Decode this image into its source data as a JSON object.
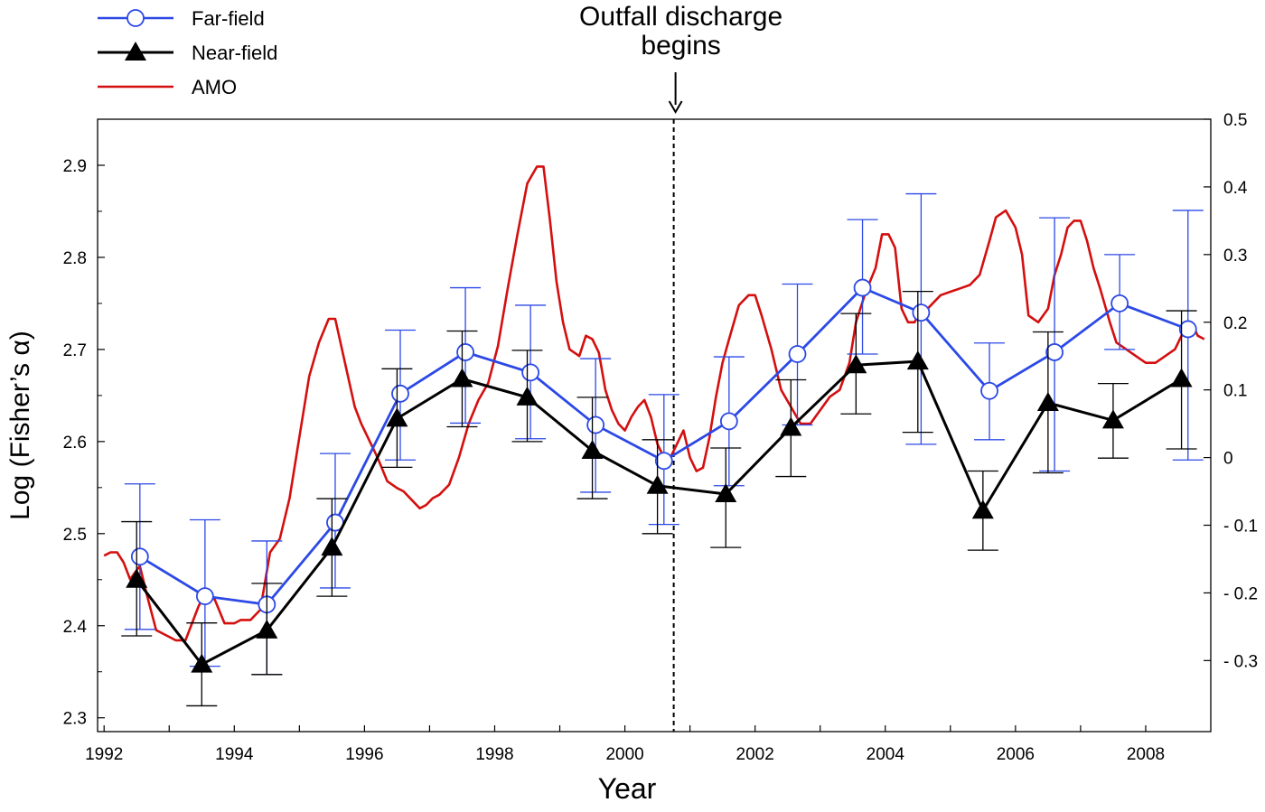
{
  "chart_data": {
    "type": "line",
    "xlabel": "Year",
    "ylabel": "Log (Fisher’s α)",
    "xlim": [
      1991.9,
      2009.0
    ],
    "ylim": [
      2.285,
      2.95
    ],
    "y2lim": [
      -0.405,
      0.5
    ],
    "x_ticks": [
      1992,
      1994,
      1996,
      1998,
      2000,
      2002,
      2004,
      2006,
      2008
    ],
    "x_tick_labels": [
      "1992",
      "1994",
      "1996",
      "1998",
      "2000",
      "2002",
      "2004",
      "2006",
      "2008"
    ],
    "y_ticks": [
      2.3,
      2.4,
      2.5,
      2.6,
      2.7,
      2.8,
      2.9
    ],
    "y_tick_labels": [
      "2.3",
      "2.4",
      "2.5",
      "2.6",
      "2.7",
      "2.8",
      "2.9"
    ],
    "y2_ticks": [
      -0.3,
      -0.2,
      -0.1,
      0,
      0.1,
      0.2,
      0.3,
      0.4,
      0.5
    ],
    "y2_tick_labels": [
      "- 0.3",
      "- 0.2",
      "- 0.1",
      "0",
      "0.1",
      "0.2",
      "0.3",
      "0.4",
      "0.5"
    ],
    "legend": {
      "position": "top-left",
      "entries": [
        {
          "label": "Far-field",
          "color": "#2c49e6",
          "marker": "circle"
        },
        {
          "label": "Near-field",
          "color": "#000000",
          "marker": "triangle"
        },
        {
          "label": "AMO",
          "color": "#d40f0f",
          "marker": "none"
        }
      ]
    },
    "annotation": {
      "lines": [
        "Outfall discharge",
        "begins"
      ],
      "x": 2000.75
    },
    "series": [
      {
        "name": "Far-field",
        "color": "#2c49e6",
        "axis": "left",
        "x": [
          1992.55,
          1993.55,
          1994.5,
          1995.55,
          1996.55,
          1997.55,
          1998.55,
          1999.55,
          2000.6,
          2001.6,
          2002.65,
          2003.65,
          2004.55,
          2005.6,
          2006.6,
          2007.6,
          2008.65
        ],
        "y": [
          2.475,
          2.432,
          2.423,
          2.512,
          2.652,
          2.697,
          2.675,
          2.618,
          2.579,
          2.622,
          2.695,
          2.767,
          2.74,
          2.655,
          2.697,
          2.75,
          2.722
        ],
        "err_low": [
          2.396,
          2.356,
          2.347,
          2.441,
          2.58,
          2.62,
          2.603,
          2.545,
          2.51,
          2.552,
          2.618,
          2.695,
          2.597,
          2.602,
          2.568,
          2.7,
          2.58
        ],
        "err_high": [
          2.554,
          2.515,
          2.492,
          2.587,
          2.721,
          2.767,
          2.748,
          2.69,
          2.651,
          2.692,
          2.771,
          2.841,
          2.869,
          2.707,
          2.843,
          2.803,
          2.851
        ]
      },
      {
        "name": "Near-field",
        "color": "#000000",
        "axis": "left",
        "x": [
          1992.5,
          1993.5,
          1994.5,
          1995.5,
          1996.5,
          1997.5,
          1998.5,
          1999.5,
          2000.5,
          2001.55,
          2002.55,
          2003.55,
          2004.5,
          2005.5,
          2006.5,
          2007.5,
          2008.55
        ],
        "y": [
          2.45,
          2.358,
          2.395,
          2.485,
          2.625,
          2.668,
          2.648,
          2.59,
          2.552,
          2.543,
          2.615,
          2.683,
          2.687,
          2.525,
          2.642,
          2.623,
          2.668
        ],
        "err_low": [
          2.389,
          2.313,
          2.347,
          2.432,
          2.572,
          2.616,
          2.6,
          2.538,
          2.5,
          2.485,
          2.562,
          2.63,
          2.61,
          2.482,
          2.566,
          2.582,
          2.592
        ],
        "err_high": [
          2.513,
          2.403,
          2.446,
          2.538,
          2.679,
          2.72,
          2.699,
          2.648,
          2.602,
          2.593,
          2.667,
          2.739,
          2.763,
          2.568,
          2.719,
          2.663,
          2.742
        ]
      },
      {
        "name": "AMO",
        "color": "#d40f0f",
        "axis": "right",
        "x": [
          1992.0,
          1992.1,
          1992.2,
          1992.3,
          1992.4,
          1992.55,
          1992.65,
          1992.8,
          1992.9,
          1993.1,
          1993.25,
          1993.45,
          1993.55,
          1993.7,
          1993.85,
          1994.0,
          1994.1,
          1994.25,
          1994.4,
          1994.55,
          1994.7,
          1994.85,
          1995.0,
          1995.15,
          1995.3,
          1995.45,
          1995.55,
          1995.7,
          1995.85,
          1995.95,
          1996.05,
          1996.2,
          1996.35,
          1996.5,
          1996.6,
          1996.75,
          1996.85,
          1996.95,
          1997.05,
          1997.15,
          1997.3,
          1997.45,
          1997.6,
          1997.75,
          1997.9,
          1998.05,
          1998.2,
          1998.35,
          1998.5,
          1998.65,
          1998.75,
          1998.85,
          1998.95,
          1999.05,
          1999.15,
          1999.3,
          1999.4,
          1999.5,
          1999.6,
          1999.7,
          1999.8,
          1999.9,
          2000.0,
          2000.1,
          2000.2,
          2000.3,
          2000.4,
          2000.5,
          2000.6,
          2000.7,
          2000.8,
          2000.9,
          2001.0,
          2001.1,
          2001.2,
          2001.3,
          2001.4,
          2001.5,
          2001.6,
          2001.75,
          2001.9,
          2002.0,
          2002.1,
          2002.25,
          2002.4,
          2002.55,
          2002.7,
          2002.85,
          2003.0,
          2003.15,
          2003.3,
          2003.45,
          2003.55,
          2003.7,
          2003.85,
          2003.95,
          2004.05,
          2004.15,
          2004.25,
          2004.35,
          2004.45,
          2004.55,
          2004.65,
          2004.75,
          2004.85,
          2005.0,
          2005.15,
          2005.3,
          2005.45,
          2005.6,
          2005.7,
          2005.85,
          2006.0,
          2006.1,
          2006.2,
          2006.35,
          2006.5,
          2006.6,
          2006.7,
          2006.8,
          2006.9,
          2007.0,
          2007.1,
          2007.2,
          2007.3,
          2007.45,
          2007.55,
          2007.7,
          2007.85,
          2008.0,
          2008.15,
          2008.3,
          2008.45,
          2008.6,
          2008.7,
          2008.8,
          2008.9
        ],
        "y": [
          -0.145,
          -0.14,
          -0.14,
          -0.155,
          -0.18,
          -0.16,
          -0.2,
          -0.255,
          -0.26,
          -0.27,
          -0.27,
          -0.22,
          -0.2,
          -0.21,
          -0.245,
          -0.245,
          -0.24,
          -0.24,
          -0.225,
          -0.14,
          -0.12,
          -0.06,
          0.03,
          0.12,
          0.17,
          0.205,
          0.205,
          0.14,
          0.075,
          0.05,
          0.03,
          0.0,
          -0.035,
          -0.045,
          -0.05,
          -0.065,
          -0.075,
          -0.07,
          -0.06,
          -0.055,
          -0.04,
          0.0,
          0.05,
          0.085,
          0.11,
          0.165,
          0.25,
          0.33,
          0.405,
          0.43,
          0.43,
          0.35,
          0.26,
          0.2,
          0.16,
          0.15,
          0.18,
          0.175,
          0.155,
          0.1,
          0.07,
          0.05,
          0.04,
          0.06,
          0.075,
          0.085,
          0.06,
          0.02,
          0.0,
          0.0,
          0.02,
          0.04,
          0.0,
          -0.02,
          -0.015,
          0.03,
          0.09,
          0.14,
          0.175,
          0.225,
          0.24,
          0.24,
          0.21,
          0.16,
          0.1,
          0.075,
          0.05,
          0.05,
          0.07,
          0.09,
          0.1,
          0.14,
          0.2,
          0.245,
          0.28,
          0.33,
          0.33,
          0.31,
          0.22,
          0.2,
          0.2,
          0.22,
          0.22,
          0.23,
          0.24,
          0.245,
          0.25,
          0.255,
          0.27,
          0.32,
          0.355,
          0.365,
          0.34,
          0.3,
          0.21,
          0.2,
          0.22,
          0.27,
          0.3,
          0.34,
          0.35,
          0.35,
          0.32,
          0.28,
          0.25,
          0.2,
          0.17,
          0.16,
          0.15,
          0.14,
          0.14,
          0.15,
          0.16,
          0.19,
          0.2,
          0.18,
          0.175
        ]
      }
    ]
  }
}
